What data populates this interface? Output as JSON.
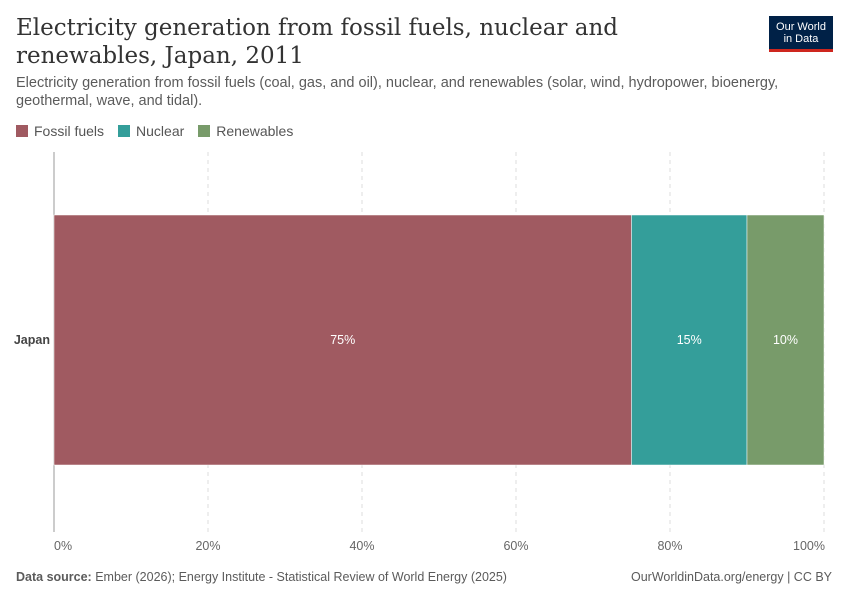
{
  "header": {
    "title": "Electricity generation from fossil fuels, nuclear and renewables, Japan, 2011",
    "subtitle": "Electricity generation from fossil fuels (coal, gas, and oil), nuclear, and renewables (solar, wind, hydropower, bioenergy, geothermal, wave, and tidal).",
    "logo_line1": "Our World",
    "logo_line2": "in Data"
  },
  "footer": {
    "source_label": "Data source:",
    "source_text": "Ember (2026); Energy Institute - Statistical Review of World Energy (2025)",
    "right_text": "OurWorldinData.org/energy | CC BY"
  },
  "colors": {
    "fossil": "#a05a61",
    "nuclear": "#349e9a",
    "renewables": "#789b6a",
    "logo_bg": "#002147",
    "logo_accent": "#ce261e"
  },
  "chart_data": {
    "type": "bar",
    "orientation": "horizontal",
    "stacked": true,
    "relative": true,
    "categories": [
      "Japan"
    ],
    "series": [
      {
        "name": "Fossil fuels",
        "values": [
          75
        ],
        "label": "75%",
        "color": "#a05a61"
      },
      {
        "name": "Nuclear",
        "values": [
          15
        ],
        "label": "15%",
        "color": "#349e9a"
      },
      {
        "name": "Renewables",
        "values": [
          10
        ],
        "label": "10%",
        "color": "#789b6a"
      }
    ],
    "xlim": [
      0,
      100
    ],
    "xticks": [
      0,
      20,
      40,
      60,
      80,
      100
    ],
    "xtick_labels": [
      "0%",
      "20%",
      "40%",
      "60%",
      "80%",
      "100%"
    ],
    "grid": true,
    "legend": "top-left"
  }
}
